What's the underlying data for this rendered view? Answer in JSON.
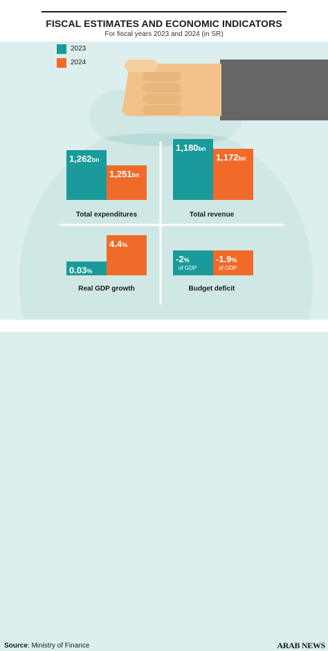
{
  "title": "FISCAL ESTIMATES AND ECONOMIC INDICATORS",
  "subtitle": "For fiscal years 2023 and 2024 (in SR)",
  "legend": [
    {
      "label": "2023",
      "color": "#1a9a9a"
    },
    {
      "label": "2024",
      "color": "#f06a2a"
    }
  ],
  "source_label": "Source",
  "source_text": ": Ministry of Finance",
  "brand": "ARAB NEWS",
  "colors": {
    "c2023": "#1a9a9a",
    "c2024": "#f06a2a",
    "bag": "#cfe8e6",
    "bag_dark": "#b9dcd9",
    "hand": "#f2c28a",
    "sleeve": "#666666"
  },
  "chart_data": [
    {
      "type": "bar",
      "title": "Total expenditures",
      "series": [
        {
          "name": "2023",
          "value": 1262,
          "label": "1,262",
          "unit": "bn"
        },
        {
          "name": "2024",
          "value": 1251,
          "label": "1,251",
          "unit": "bn"
        }
      ]
    },
    {
      "type": "bar",
      "title": "Total revenue",
      "series": [
        {
          "name": "2023",
          "value": 1180,
          "label": "1,180",
          "unit": "bn"
        },
        {
          "name": "2024",
          "value": 1172,
          "label": "1,172",
          "unit": "bn"
        }
      ]
    },
    {
      "type": "bar",
      "title": "Real GDP growth",
      "series": [
        {
          "name": "2023",
          "value": 0.03,
          "label": "0.03",
          "unit": "%"
        },
        {
          "name": "2024",
          "value": 4.4,
          "label": "4.4",
          "unit": "%"
        }
      ]
    },
    {
      "type": "bar",
      "title": "Budget deficit",
      "series": [
        {
          "name": "2023",
          "value": -2,
          "label": "-2",
          "unit": "%",
          "note": "of GDP"
        },
        {
          "name": "2024",
          "value": -1.9,
          "label": "-1.9",
          "unit": "%",
          "note": "of GDP"
        }
      ]
    }
  ]
}
